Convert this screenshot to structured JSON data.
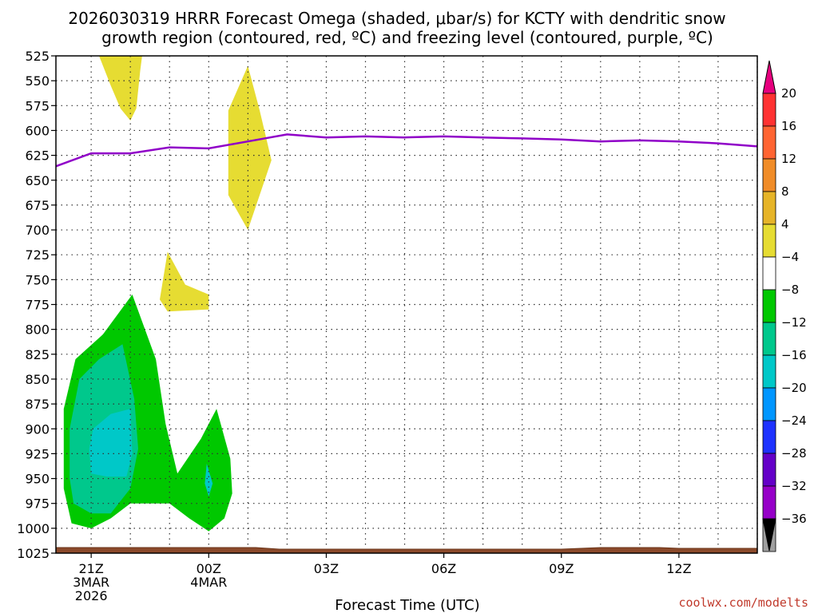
{
  "chart_data": {
    "type": "contour-time-height",
    "title_line1": "2026030319 HRRR Forecast Omega (shaded, μbar/s) for KCTY with dendritic snow",
    "title_line2": "growth region (contoured, red, ºC) and freezing level (contoured, purple, ºC)",
    "xlabel": "Forecast Time (UTC)",
    "credit": "coolwx.com/modelts",
    "x_range_hours": [
      -3.9,
      14.0
    ],
    "y_ticks": [
      525,
      550,
      575,
      600,
      625,
      650,
      675,
      700,
      725,
      750,
      775,
      800,
      825,
      850,
      875,
      900,
      925,
      950,
      975,
      1000,
      1025
    ],
    "y_range_mb": [
      525,
      1025
    ],
    "x_ticks": [
      {
        "h": -3,
        "lines": [
          "21Z",
          "3MAR",
          "2026"
        ]
      },
      {
        "h": 0,
        "lines": [
          "00Z",
          "4MAR"
        ]
      },
      {
        "h": 3,
        "lines": [
          "03Z"
        ]
      },
      {
        "h": 6,
        "lines": [
          "06Z"
        ]
      },
      {
        "h": 9,
        "lines": [
          "09Z"
        ]
      },
      {
        "h": 12,
        "lines": [
          "12Z"
        ]
      }
    ],
    "freezing_level": [
      [
        -3.9,
        636
      ],
      [
        -3.0,
        623
      ],
      [
        -2.0,
        623
      ],
      [
        -1.0,
        617
      ],
      [
        0.0,
        618
      ],
      [
        1.0,
        611
      ],
      [
        2.0,
        604
      ],
      [
        3.0,
        607
      ],
      [
        4.0,
        606
      ],
      [
        5.0,
        607
      ],
      [
        6.0,
        606
      ],
      [
        7.0,
        607
      ],
      [
        8.0,
        608
      ],
      [
        9.0,
        609
      ],
      [
        10.0,
        611
      ],
      [
        11.0,
        610
      ],
      [
        12.0,
        611
      ],
      [
        13.0,
        613
      ],
      [
        14.0,
        616
      ]
    ],
    "shading": [
      {
        "level": "4 to 8",
        "color": "#e6dc32",
        "points": [
          [
            -2.8,
            525
          ],
          [
            -1.7,
            525
          ],
          [
            -1.75,
            540
          ],
          [
            -1.85,
            578
          ],
          [
            -2.0,
            590
          ],
          [
            -2.25,
            578
          ],
          [
            -2.5,
            555
          ],
          [
            -2.8,
            525
          ]
        ]
      },
      {
        "level": "4 to 8",
        "color": "#e6dc32",
        "points": [
          [
            1.0,
            535
          ],
          [
            1.3,
            580
          ],
          [
            1.6,
            630
          ],
          [
            1.0,
            700
          ],
          [
            0.5,
            665
          ],
          [
            0.5,
            580
          ],
          [
            1.0,
            535
          ]
        ]
      },
      {
        "level": "4 to 8",
        "color": "#e6dc32",
        "points": [
          [
            -1.05,
            722
          ],
          [
            -0.6,
            755
          ],
          [
            0.0,
            765
          ],
          [
            0.0,
            780
          ],
          [
            -1.05,
            782
          ],
          [
            -1.25,
            770
          ],
          [
            -1.05,
            722
          ]
        ]
      },
      {
        "level": "-8 to -4",
        "color": "#00c800",
        "points": [
          [
            -1.95,
            765
          ],
          [
            -1.35,
            830
          ],
          [
            -1.1,
            895
          ],
          [
            -0.8,
            945
          ],
          [
            -0.2,
            910
          ],
          [
            0.2,
            880
          ],
          [
            0.55,
            930
          ],
          [
            0.6,
            965
          ],
          [
            0.4,
            990
          ],
          [
            0.0,
            1003
          ],
          [
            -0.5,
            990
          ],
          [
            -1.0,
            975
          ],
          [
            -2.0,
            975
          ],
          [
            -2.5,
            990
          ],
          [
            -3.0,
            1000
          ],
          [
            -3.5,
            995
          ],
          [
            -3.7,
            960
          ],
          [
            -3.7,
            880
          ],
          [
            -3.4,
            830
          ],
          [
            -2.7,
            805
          ],
          [
            -1.95,
            765
          ]
        ]
      },
      {
        "level": "-12 to -8",
        "color": "#00c88c",
        "points": [
          [
            -2.2,
            815
          ],
          [
            -1.9,
            870
          ],
          [
            -1.8,
            920
          ],
          [
            -2.0,
            960
          ],
          [
            -2.5,
            985
          ],
          [
            -3.0,
            985
          ],
          [
            -3.45,
            975
          ],
          [
            -3.55,
            950
          ],
          [
            -3.55,
            900
          ],
          [
            -3.3,
            850
          ],
          [
            -2.8,
            830
          ],
          [
            -2.2,
            815
          ]
        ]
      },
      {
        "level": "-16 to -12",
        "color": "#00c8c8",
        "points": [
          [
            -2.0,
            880
          ],
          [
            -1.95,
            925
          ],
          [
            -2.1,
            948
          ],
          [
            -2.6,
            948
          ],
          [
            -3.0,
            945
          ],
          [
            -3.05,
            920
          ],
          [
            -2.95,
            900
          ],
          [
            -2.5,
            885
          ],
          [
            -2.0,
            880
          ]
        ]
      },
      {
        "level": "-16 to -12",
        "color": "#00c8c8",
        "points": [
          [
            -0.05,
            935
          ],
          [
            0.1,
            955
          ],
          [
            0.0,
            968
          ],
          [
            -0.1,
            955
          ],
          [
            -0.05,
            935
          ]
        ]
      }
    ],
    "colorbar": {
      "labels": [
        "20",
        "16",
        "12",
        "8",
        "4",
        "−4",
        "−8",
        "−12",
        "−16",
        "−20",
        "−24",
        "−28",
        "−32",
        "−36"
      ],
      "top_arrow": "#e6007e",
      "bottom_arrow": "#000000",
      "colors": [
        "#ff3232",
        "#ff6432",
        "#f08c28",
        "#e6b428",
        "#e6dc32",
        "#ffffff",
        "#00c800",
        "#00c88c",
        "#00c8c8",
        "#0096ff",
        "#1e32ff",
        "#6400c8",
        "#9600c8",
        "#a0a0a0"
      ]
    }
  }
}
